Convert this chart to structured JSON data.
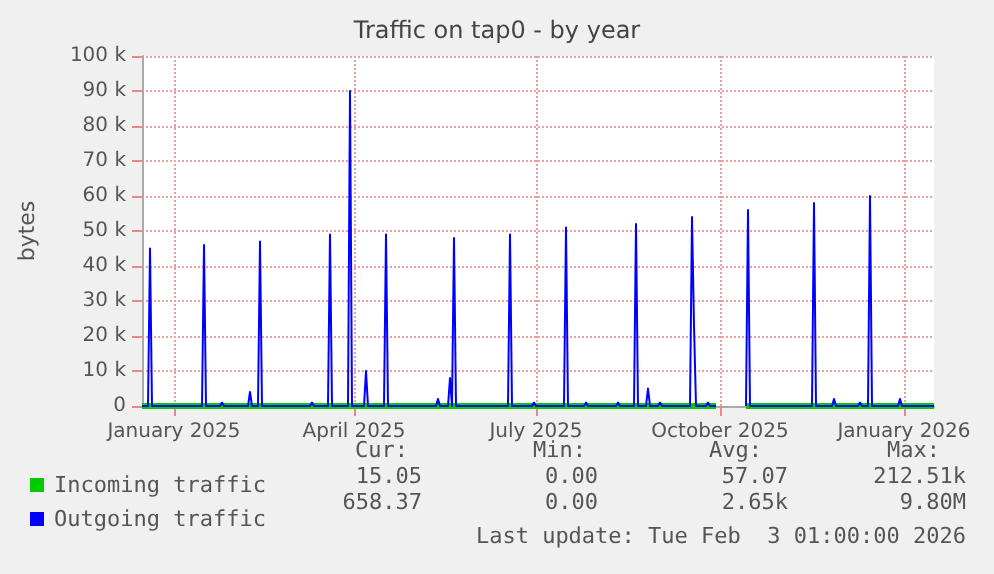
{
  "chart_data": {
    "type": "line",
    "title": "Traffic on tap0 - by year",
    "ylabel": "bytes",
    "xlim": [
      "2024-12-16",
      "2026-01-16"
    ],
    "xticks": [
      {
        "value": "2025-01-01",
        "label": "January 2025"
      },
      {
        "value": "2025-04-01",
        "label": "April 2025"
      },
      {
        "value": "2025-07-01",
        "label": "July 2025"
      },
      {
        "value": "2025-10-01",
        "label": "October 2025"
      },
      {
        "value": "2026-01-01",
        "label": "January 2026"
      }
    ],
    "ylim": [
      0,
      100000
    ],
    "yticks": [
      0,
      {
        "value": 10000,
        "label": "10 k"
      },
      {
        "value": 20000,
        "label": "20 k"
      },
      {
        "value": 30000,
        "label": "30 k"
      },
      {
        "value": 40000,
        "label": "40 k"
      },
      {
        "value": 50000,
        "label": "50 k"
      },
      {
        "value": 60000,
        "label": "60 k"
      },
      {
        "value": 70000,
        "label": "70 k"
      },
      {
        "value": 80000,
        "label": "80 k"
      },
      {
        "value": 90000,
        "label": "90 k"
      },
      {
        "value": 100000,
        "label": "100 k"
      }
    ],
    "grid": true,
    "legend": "bottom left",
    "marker": "none",
    "line_style": "solid",
    "series": [
      {
        "name": "Incoming traffic",
        "color": "#00cc00",
        "x": [
          "2024-12-16",
          "2025-09-29",
          "2025-09-30",
          "2025-10-14",
          "2026-01-16"
        ],
        "values": [
          0,
          0,
          null,
          0,
          0
        ]
      },
      {
        "name": "Outgoing traffic",
        "color": "#0000ff",
        "x": [
          "2024-12-16",
          "2024-12-19",
          "2024-12-20",
          "2024-12-21",
          "2025-01-15",
          "2025-01-16",
          "2025-01-17",
          "2025-01-24",
          "2025-01-25",
          "2025-01-26",
          "2025-02-07",
          "2025-02-08",
          "2025-02-09",
          "2025-02-12",
          "2025-02-13",
          "2025-02-14",
          "2025-03-10",
          "2025-03-11",
          "2025-03-12",
          "2025-03-19",
          "2025-03-20",
          "2025-03-21",
          "2025-03-29",
          "2025-03-30",
          "2025-03-31",
          "2025-04-06",
          "2025-04-07",
          "2025-04-08",
          "2025-04-16",
          "2025-04-17",
          "2025-04-18",
          "2025-05-12",
          "2025-05-13",
          "2025-05-14",
          "2025-05-18",
          "2025-05-19",
          "2025-05-20",
          "2025-05-21",
          "2025-05-22",
          "2025-06-17",
          "2025-06-18",
          "2025-06-19",
          "2025-06-29",
          "2025-06-30",
          "2025-07-01",
          "2025-07-15",
          "2025-07-16",
          "2025-07-17",
          "2025-07-25",
          "2025-07-26",
          "2025-07-27",
          "2025-08-10",
          "2025-08-11",
          "2025-08-12",
          "2025-08-19",
          "2025-08-20",
          "2025-08-21",
          "2025-08-25",
          "2025-08-26",
          "2025-08-27",
          "2025-08-31",
          "2025-09-01",
          "2025-09-02",
          "2025-09-16",
          "2025-09-17",
          "2025-09-18",
          "2025-09-19",
          "2025-09-24",
          "2025-09-25",
          "2025-09-26",
          "2025-09-29",
          "2025-09-30",
          "2025-10-14",
          "2025-10-15",
          "2025-10-16",
          "2025-11-16",
          "2025-11-17",
          "2025-11-18",
          "2025-11-26",
          "2025-11-27",
          "2025-11-28",
          "2025-12-09",
          "2025-12-10",
          "2025-12-11",
          "2025-12-14",
          "2025-12-15",
          "2025-12-16",
          "2025-12-29",
          "2025-12-30",
          "2025-12-31",
          "2026-01-16"
        ],
        "values": [
          0,
          0,
          45000,
          0,
          0,
          46000,
          0,
          0,
          1000,
          0,
          0,
          4000,
          0,
          0,
          47000,
          0,
          0,
          1000,
          0,
          0,
          49000,
          0,
          0,
          90000,
          0,
          0,
          10000,
          0,
          0,
          49000,
          0,
          0,
          2000,
          0,
          0,
          8000,
          0,
          48000,
          0,
          0,
          49000,
          0,
          0,
          1000,
          0,
          0,
          51000,
          0,
          0,
          1000,
          0,
          0,
          1000,
          0,
          0,
          52000,
          0,
          0,
          5000,
          0,
          0,
          1000,
          0,
          0,
          54000,
          23000,
          0,
          0,
          1000,
          0,
          0,
          null,
          0,
          56000,
          0,
          0,
          58000,
          0,
          0,
          2000,
          0,
          0,
          1000,
          0,
          0,
          60000,
          0,
          0,
          2000,
          0,
          0
        ]
      }
    ],
    "annotations": [
      "Cur:",
      "Min:",
      "Avg:",
      "Max:",
      "15.05",
      "0.00",
      "57.07",
      "212.51k",
      "658.37",
      "0.00",
      "2.65k",
      "9.80M",
      "Last update: Tue Feb  3 01:00:00 2026"
    ]
  }
}
